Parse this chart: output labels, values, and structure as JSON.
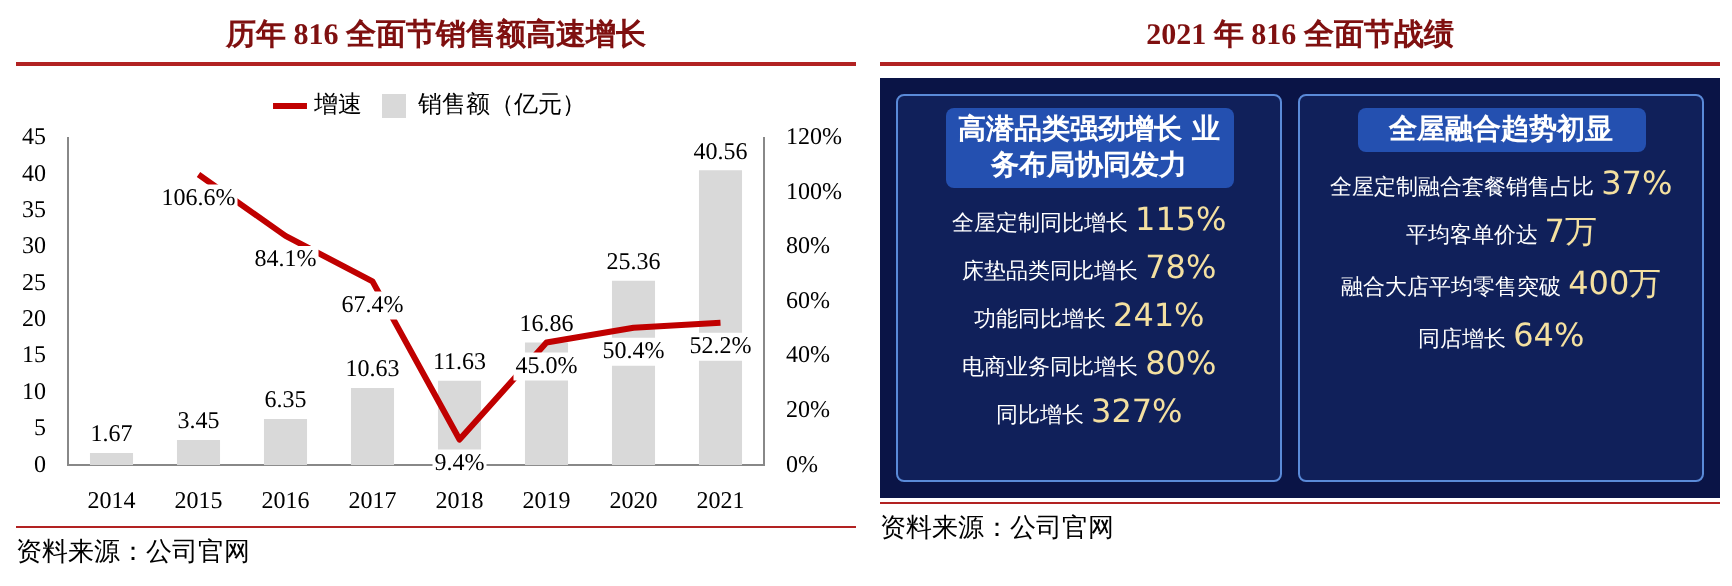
{
  "chart_data": [
    {
      "type": "bar",
      "title": "历年 816 全面节销售额高速增长",
      "categories": [
        "2014",
        "2015",
        "2016",
        "2017",
        "2018",
        "2019",
        "2020",
        "2021"
      ],
      "series": [
        {
          "name": "销售额（亿元）",
          "type": "bar",
          "color": "#d9d9d9",
          "values": [
            1.67,
            3.45,
            6.35,
            10.63,
            11.63,
            16.86,
            25.36,
            40.56
          ],
          "value_labels": [
            "1.67",
            "3.45",
            "6.35",
            "10.63",
            "11.63",
            "16.86",
            "25.36",
            "40.56"
          ]
        },
        {
          "name": "增速",
          "type": "line",
          "axis": "y2",
          "color": "#c00000",
          "marker": "none",
          "values": [
            null,
            106.6,
            84.1,
            67.4,
            9.4,
            45.0,
            50.4,
            52.2
          ],
          "value_labels": [
            null,
            "106.6%",
            "84.1%",
            "67.4%",
            "9.4%",
            "45.0%",
            "50.4%",
            "52.2%"
          ]
        }
      ],
      "ylim": [
        0,
        45
      ],
      "yticks": [
        0,
        5,
        10,
        15,
        20,
        25,
        30,
        35,
        40,
        45
      ],
      "y2lim": [
        0,
        120
      ],
      "y2ticks": [
        {
          "value": 0,
          "label": "0%"
        },
        {
          "value": 20,
          "label": "20%"
        },
        {
          "value": 40,
          "label": "40%"
        },
        {
          "value": 60,
          "label": "60%"
        },
        {
          "value": 80,
          "label": "80%"
        },
        {
          "value": 100,
          "label": "100%"
        },
        {
          "value": 120,
          "label": "120%"
        }
      ],
      "legend": "top",
      "annotations": [
        "资料来源：公司官网"
      ]
    },
    {
      "type": "other",
      "title": "2021 年 816 全面节战绩",
      "annotations": [
        "高潜品类强劲增长 业务布局协同发力",
        "全屋定制同比增长 115%",
        "床垫品类同比增长 78%",
        "功能同比增长 241%",
        "电商业务同比增长 80%",
        "同比增长 327%",
        "全屋融合趋势初显",
        "全屋定制融合套餐销售占比 37%",
        "平均客单价达 7万",
        "融合大店平均零售突破 400万",
        "同店增长 64%",
        "资料来源：公司官网"
      ]
    }
  ]
}
